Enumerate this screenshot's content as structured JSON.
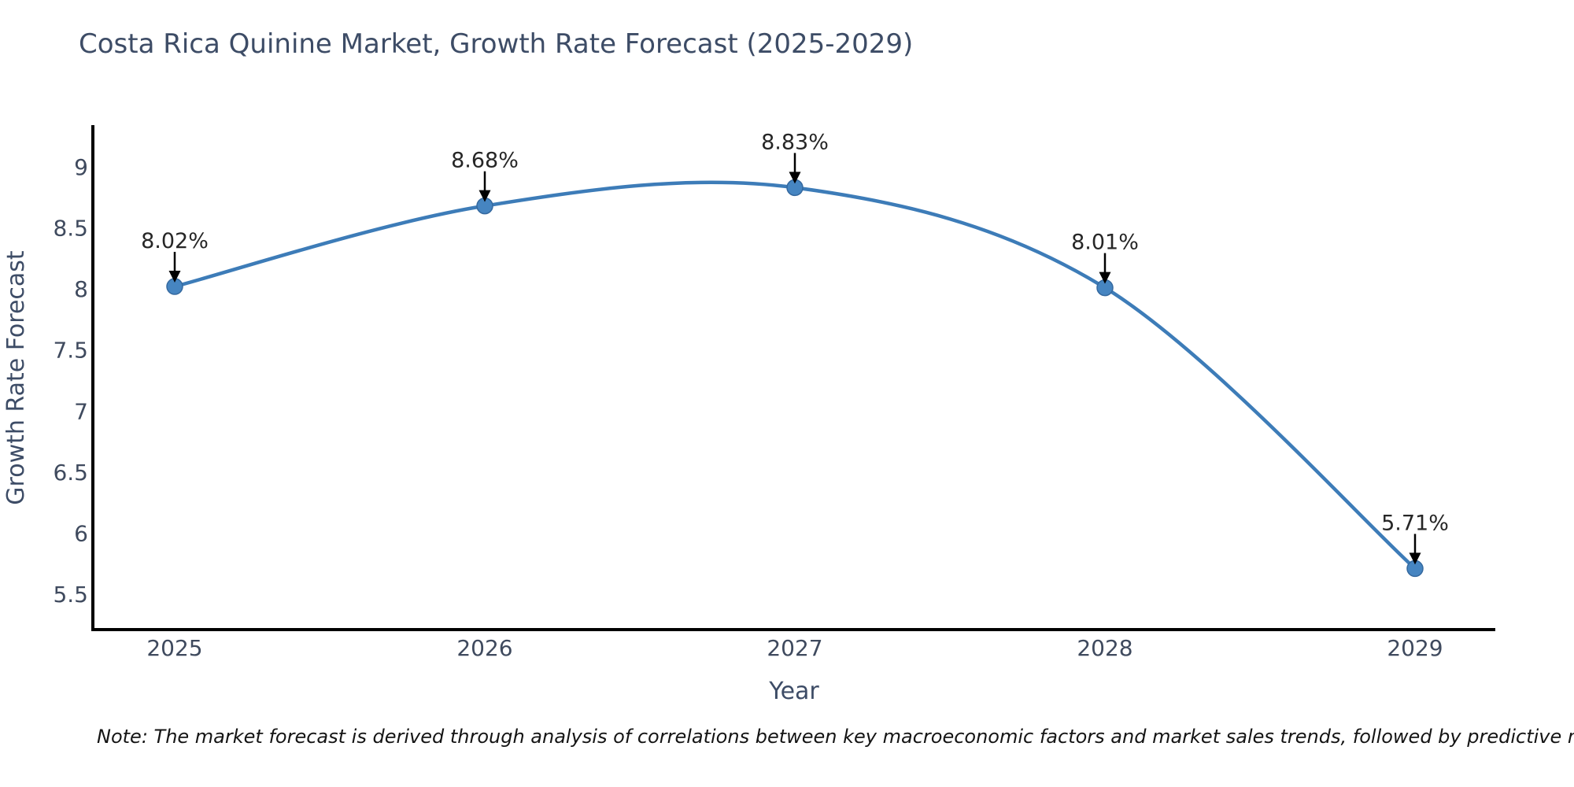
{
  "chart_data": {
    "type": "line",
    "title": "Costa Rica Quinine Market, Growth Rate Forecast (2025-2029)",
    "xlabel": "Year",
    "ylabel": "Growth Rate Forecast",
    "x": [
      2025,
      2026,
      2027,
      2028,
      2029
    ],
    "series": [
      {
        "name": "Growth Rate Forecast",
        "values": [
          8.02,
          8.68,
          8.83,
          8.01,
          5.71
        ]
      }
    ],
    "point_labels": [
      "8.02%",
      "8.68%",
      "8.83%",
      "8.01%",
      "5.71%"
    ],
    "xtick_labels": [
      "2025",
      "2026",
      "2027",
      "2028",
      "2029"
    ],
    "yticks": [
      5.5,
      6,
      6.5,
      7,
      7.5,
      8,
      8.5,
      9
    ],
    "ytick_labels": [
      "5.5",
      "6",
      "6.5",
      "7",
      "7.5",
      "8",
      "8.5",
      "9"
    ],
    "ylim": [
      5.2,
      9.34
    ],
    "grid": false,
    "legend_position": "none",
    "line_shape": "spline",
    "colors": {
      "line": "#3d7cb8",
      "marker": "#4685c1",
      "marker_stroke": "#35699f",
      "axis": "#000000",
      "annotation_arrow": "#000000"
    }
  },
  "note": "Note: The market forecast is derived through analysis of correlations between key macroeconomic factors and market sales trends, followed by predictive modeling to project future sales"
}
